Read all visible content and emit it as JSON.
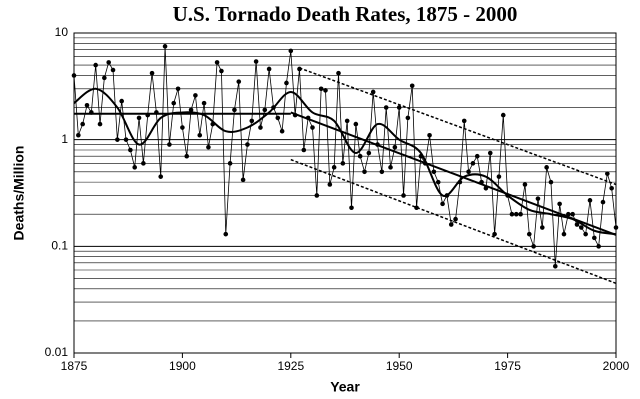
{
  "chart_data": {
    "type": "line",
    "title": "U.S. Tornado Death Rates, 1875 - 2000",
    "x_label": "Year",
    "y_label": "Deaths/Million",
    "log_y": true,
    "grid": true,
    "minor_grid": true,
    "xlim": [
      1875,
      2000
    ],
    "xticks": [
      1875,
      1900,
      1925,
      1950,
      1975,
      2000
    ],
    "ylim": [
      0.01,
      10
    ],
    "yticks": [
      0.01,
      0.1,
      1,
      10
    ],
    "x": [
      1875,
      1876,
      1877,
      1878,
      1879,
      1880,
      1881,
      1882,
      1883,
      1884,
      1885,
      1886,
      1887,
      1888,
      1889,
      1890,
      1891,
      1892,
      1893,
      1894,
      1895,
      1896,
      1897,
      1898,
      1899,
      1900,
      1901,
      1902,
      1903,
      1904,
      1905,
      1906,
      1907,
      1908,
      1909,
      1910,
      1911,
      1912,
      1913,
      1914,
      1915,
      1916,
      1917,
      1918,
      1919,
      1920,
      1921,
      1922,
      1923,
      1924,
      1925,
      1926,
      1927,
      1928,
      1929,
      1930,
      1931,
      1932,
      1933,
      1934,
      1935,
      1936,
      1937,
      1938,
      1939,
      1940,
      1941,
      1942,
      1943,
      1944,
      1945,
      1946,
      1947,
      1948,
      1949,
      1950,
      1951,
      1952,
      1953,
      1954,
      1955,
      1956,
      1957,
      1958,
      1959,
      1960,
      1961,
      1962,
      1963,
      1964,
      1965,
      1966,
      1967,
      1968,
      1969,
      1970,
      1971,
      1972,
      1973,
      1974,
      1975,
      1976,
      1977,
      1978,
      1979,
      1980,
      1981,
      1982,
      1983,
      1984,
      1985,
      1986,
      1987,
      1988,
      1989,
      1990,
      1991,
      1992,
      1993,
      1994,
      1995,
      1996,
      1997,
      1998,
      1999,
      2000
    ],
    "series": [
      {
        "color": "#000000",
        "style": "points",
        "values": [
          4.0,
          1.1,
          1.4,
          2.1,
          1.8,
          5.0,
          1.4,
          3.8,
          5.3,
          4.5,
          1.0,
          2.3,
          1.0,
          0.8,
          0.55,
          1.6,
          0.6,
          1.7,
          4.2,
          1.8,
          0.45,
          7.5,
          0.9,
          2.2,
          3.0,
          1.3,
          0.7,
          1.9,
          2.6,
          1.1,
          2.2,
          0.85,
          1.4,
          5.3,
          4.4,
          0.13,
          0.6,
          1.9,
          3.5,
          0.42,
          0.9,
          1.5,
          5.4,
          1.3,
          1.9,
          4.6,
          2.0,
          1.6,
          1.2,
          3.4,
          6.8,
          1.7,
          4.6,
          0.8,
          1.6,
          1.3,
          0.3,
          3.0,
          2.9,
          0.38,
          0.55,
          4.2,
          0.6,
          1.5,
          0.23,
          1.4,
          0.7,
          0.5,
          0.75,
          2.8,
          0.9,
          0.5,
          2.0,
          0.55,
          0.85,
          2.0,
          0.3,
          1.6,
          3.2,
          0.23,
          0.7,
          0.6,
          1.1,
          0.5,
          0.4,
          0.25,
          0.3,
          0.16,
          0.18,
          0.4,
          1.5,
          0.5,
          0.6,
          0.7,
          0.4,
          0.35,
          0.75,
          0.13,
          0.45,
          1.7,
          0.3,
          0.2,
          0.2,
          0.2,
          0.38,
          0.13,
          0.1,
          0.28,
          0.15,
          0.55,
          0.4,
          0.065,
          0.25,
          0.13,
          0.2,
          0.2,
          0.16,
          0.15,
          0.13,
          0.27,
          0.12,
          0.1,
          0.26,
          0.48,
          0.35,
          0.15
        ]
      },
      {
        "color": "#000000",
        "style": "smooth",
        "x": [
          1875,
          1880,
          1885,
          1890,
          1895,
          1900,
          1905,
          1910,
          1915,
          1920,
          1925,
          1930,
          1935,
          1940,
          1945,
          1950,
          1955,
          1960,
          1965,
          1970,
          1975,
          1980,
          1985,
          1990,
          1995,
          2000
        ],
        "values": [
          2.2,
          3.0,
          2.0,
          0.9,
          1.6,
          1.8,
          1.7,
          1.2,
          1.3,
          1.8,
          2.8,
          1.8,
          1.5,
          0.75,
          1.4,
          1.0,
          0.75,
          0.3,
          0.45,
          0.45,
          0.3,
          0.22,
          0.2,
          0.18,
          0.14,
          0.13
        ]
      },
      {
        "color": "#000000",
        "style": "trend",
        "x": [
          1875,
          1925
        ],
        "values": [
          1.75,
          1.75
        ]
      },
      {
        "color": "#000000",
        "style": "trend",
        "x": [
          1925,
          2000
        ],
        "values": [
          1.8,
          0.128
        ]
      },
      {
        "color": "#000000",
        "style": "dashed",
        "x": [
          1927,
          2000
        ],
        "values": [
          4.7,
          0.38
        ]
      },
      {
        "color": "#000000",
        "style": "dashed",
        "x": [
          1925,
          2000
        ],
        "values": [
          0.65,
          0.045
        ]
      }
    ]
  }
}
